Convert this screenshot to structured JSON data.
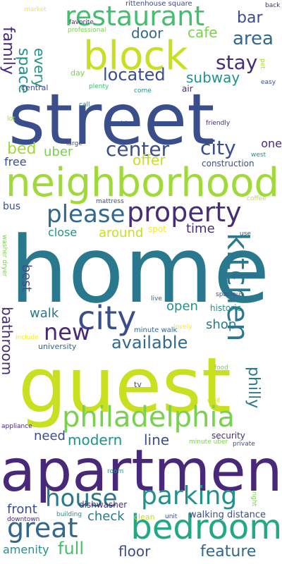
{
  "palette": {
    "navy": "#3b4e8c",
    "indigo": "#482878",
    "purple": "#472c7a",
    "blue": "#31688e",
    "teal": "#2a788e",
    "cyan": "#21918c",
    "sea": "#22a884",
    "green": "#44bf70",
    "lime": "#7ad151",
    "yellowgreen": "#a0da39",
    "yellow": "#c8e020",
    "gold": "#fde725"
  },
  "words": [
    {
      "text": "street",
      "color": "#3b4e8c"
    },
    {
      "text": "home",
      "color": "#2a788e"
    },
    {
      "text": "guest",
      "color": "#c8e020"
    },
    {
      "text": "apartment",
      "color": "#482878"
    },
    {
      "text": "neighborhood",
      "color": "#a0da39"
    },
    {
      "text": "block",
      "color": "#c8e020"
    },
    {
      "text": "restaurant",
      "color": "#44bf70"
    },
    {
      "text": "bedroom",
      "color": "#22a884"
    },
    {
      "text": "philadelphia",
      "color": "#7ad151"
    },
    {
      "text": "property",
      "color": "#472c7a"
    },
    {
      "text": "city",
      "color": "#3b4e8c"
    },
    {
      "text": "kitchen",
      "color": "#2a788e"
    },
    {
      "text": "parking",
      "color": "#21918c"
    },
    {
      "text": "house",
      "color": "#2a788e"
    },
    {
      "text": "great",
      "color": "#31688e"
    },
    {
      "text": "new",
      "color": "#482878"
    },
    {
      "text": "please",
      "color": "#31688e"
    },
    {
      "text": "center",
      "color": "#3b4e8c"
    },
    {
      "text": "city",
      "color": "#3b4e8c"
    },
    {
      "text": "area",
      "color": "#31688e"
    },
    {
      "text": "stay",
      "color": "#472c7a"
    },
    {
      "text": "located",
      "color": "#3b4e8c"
    },
    {
      "text": "available",
      "color": "#31688e"
    },
    {
      "text": "full",
      "color": "#44bf70"
    },
    {
      "text": "feature",
      "color": "#31688e"
    },
    {
      "text": "floor",
      "color": "#3b4e8c"
    },
    {
      "text": "philly",
      "color": "#2a788e"
    },
    {
      "text": "bathroom",
      "color": "#472c7a"
    },
    {
      "text": "bar",
      "color": "#3b4e8c"
    },
    {
      "text": "cafe",
      "color": "#7ad151"
    },
    {
      "text": "door",
      "color": "#31688e"
    },
    {
      "text": "space",
      "color": "#21918c"
    },
    {
      "text": "every",
      "color": "#21918c"
    },
    {
      "text": "family",
      "color": "#482878"
    },
    {
      "text": "subway",
      "color": "#21918c"
    },
    {
      "text": "bed",
      "color": "#a0da39"
    },
    {
      "text": "uber",
      "color": "#7ad151"
    },
    {
      "text": "offer",
      "color": "#c8e020"
    },
    {
      "text": "free",
      "color": "#3b4e8c"
    },
    {
      "text": "time",
      "color": "#472c7a"
    },
    {
      "text": "around",
      "color": "#c8e020"
    },
    {
      "text": "close",
      "color": "#21918c"
    },
    {
      "text": "best",
      "color": "#3b4e8c"
    },
    {
      "text": "walk",
      "color": "#2a788e"
    },
    {
      "text": "open",
      "color": "#21918c"
    },
    {
      "text": "shop",
      "color": "#2a788e"
    },
    {
      "text": "need",
      "color": "#3b4e8c"
    },
    {
      "text": "modern",
      "color": "#21918c"
    },
    {
      "text": "line",
      "color": "#3b4e8c"
    },
    {
      "text": "check",
      "color": "#2a788e"
    },
    {
      "text": "front",
      "color": "#3b4e8c"
    },
    {
      "text": "amenity",
      "color": "#21918c"
    },
    {
      "text": "walking distance",
      "color": "#3b4e8c"
    },
    {
      "text": "one",
      "color": "#472c7a"
    },
    {
      "text": "construction",
      "color": "#3b4e8c"
    },
    {
      "text": "bus",
      "color": "#3b4e8c"
    },
    {
      "text": "spot",
      "color": "#fde725"
    },
    {
      "text": "historic",
      "color": "#21918c"
    },
    {
      "text": "university",
      "color": "#31688e"
    },
    {
      "text": "security",
      "color": "#472c7a"
    },
    {
      "text": "dishwasher",
      "color": "#482878"
    },
    {
      "text": "tv",
      "color": "#3b4e8c"
    },
    {
      "text": "minute walk",
      "color": "#31688e"
    },
    {
      "text": "central",
      "color": "#3b4e8c"
    },
    {
      "text": "day",
      "color": "#7ad151"
    },
    {
      "text": "air",
      "color": "#472c7a"
    },
    {
      "text": "rittenhouse square",
      "color": "#3b4e8c"
    },
    {
      "text": "favorite",
      "color": "#482878"
    },
    {
      "text": "market",
      "color": "#fde725"
    },
    {
      "text": "professional",
      "color": "#7ad151"
    },
    {
      "text": "plenty",
      "color": "#44bf70"
    },
    {
      "text": "come",
      "color": "#21918c"
    },
    {
      "text": "call",
      "color": "#31688e"
    },
    {
      "text": "airbnb",
      "color": "#3b4e8c"
    },
    {
      "text": "friendly",
      "color": "#472c7a"
    },
    {
      "text": "large",
      "color": "#3b4e8c"
    },
    {
      "text": "lot",
      "color": "#a0da39"
    },
    {
      "text": "back",
      "color": "#472c7a"
    },
    {
      "text": "pet",
      "color": "#a0da39"
    },
    {
      "text": "easy",
      "color": "#3b4e8c"
    },
    {
      "text": "west",
      "color": "#21918c"
    },
    {
      "text": "coffee",
      "color": "#c8e020"
    },
    {
      "text": "mattress",
      "color": "#3b4e8c"
    },
    {
      "text": "use",
      "color": "#3b4e8c"
    },
    {
      "text": "washer dryer",
      "color": "#7ad151"
    },
    {
      "text": "question",
      "color": "#31688e"
    },
    {
      "text": "live",
      "color": "#31688e"
    },
    {
      "text": "spacious",
      "color": "#3b4e8c"
    },
    {
      "text": "include",
      "color": "#fde725"
    },
    {
      "text": "lovely",
      "color": "#fde725"
    },
    {
      "text": "food",
      "color": "#7ad151"
    },
    {
      "text": "well",
      "color": "#c8e020"
    },
    {
      "text": "appliance",
      "color": "#482878"
    },
    {
      "text": "minute uber",
      "color": "#7ad151"
    },
    {
      "text": "private",
      "color": "#3b4e8c"
    },
    {
      "text": "room",
      "color": "#21918c"
    },
    {
      "text": "right",
      "color": "#7ad151"
    },
    {
      "text": "building",
      "color": "#21918c"
    },
    {
      "text": "downtown",
      "color": "#482878"
    },
    {
      "text": "clean",
      "color": "#c8e020"
    },
    {
      "text": "unit",
      "color": "#3b4e8c"
    }
  ]
}
